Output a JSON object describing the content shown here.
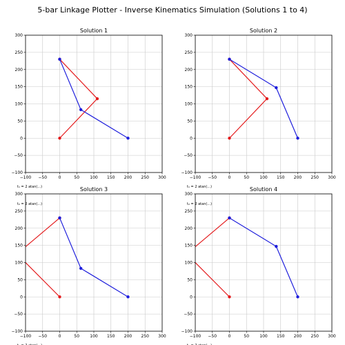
{
  "figure": {
    "title": "5-bar Linkage Plotter - Inverse Kinematics Simulation (Solutions 1 to 4)"
  },
  "colors": {
    "left_arm": "#e41a1c",
    "right_arm": "#1f1fdc",
    "grid": "#c8c8c8",
    "background": "#ffffff"
  },
  "chart_data": [
    {
      "type": "line",
      "title": "Solution 1",
      "xlim": [
        -100,
        300
      ],
      "ylim": [
        -100,
        300
      ],
      "xticks": [
        -100,
        -50,
        0,
        50,
        100,
        150,
        200,
        250,
        300
      ],
      "yticks": [
        -100,
        -50,
        0,
        50,
        100,
        150,
        200,
        250,
        300
      ],
      "grid": true,
      "formula_label": "t₁ = 2 atan(...)",
      "series": [
        {
          "x": [
            0,
            110,
            0
          ],
          "y": [
            0,
            115,
            230
          ],
          "color": "#e41a1c"
        },
        {
          "x": [
            200,
            62,
            0
          ],
          "y": [
            0,
            83,
            230
          ],
          "color": "#1f1fdc"
        }
      ]
    },
    {
      "type": "line",
      "title": "Solution 2",
      "xlim": [
        -100,
        300
      ],
      "ylim": [
        -100,
        300
      ],
      "xticks": [
        -100,
        -50,
        0,
        50,
        100,
        150,
        200,
        250,
        300
      ],
      "yticks": [
        -100,
        -50,
        0,
        50,
        100,
        150,
        200,
        250,
        300
      ],
      "grid": true,
      "formula_label": "t₁ = 2 atan(...)",
      "series": [
        {
          "x": [
            0,
            110,
            0
          ],
          "y": [
            0,
            115,
            230
          ],
          "color": "#e41a1c"
        },
        {
          "x": [
            200,
            137,
            0
          ],
          "y": [
            0,
            147,
            230
          ],
          "color": "#1f1fdc"
        }
      ]
    },
    {
      "type": "line",
      "title": "Solution 3",
      "xlim": [
        -100,
        300
      ],
      "ylim": [
        -100,
        300
      ],
      "xticks": [
        -100,
        -50,
        0,
        50,
        100,
        150,
        200,
        250,
        300
      ],
      "yticks": [
        -100,
        -50,
        0,
        50,
        100,
        150,
        200,
        250,
        300
      ],
      "grid": true,
      "formula_label": "t₁ = 2 atan(...)",
      "formula_label_top": "t₂ = 2 atan(...)",
      "series": [
        {
          "x": [
            0,
            -125,
            0
          ],
          "y": [
            0,
            125,
            230
          ],
          "color": "#e41a1c"
        },
        {
          "x": [
            200,
            62,
            0
          ],
          "y": [
            0,
            83,
            230
          ],
          "color": "#1f1fdc"
        }
      ]
    },
    {
      "type": "line",
      "title": "Solution 4",
      "xlim": [
        -100,
        300
      ],
      "ylim": [
        -100,
        300
      ],
      "xticks": [
        -100,
        -50,
        0,
        50,
        100,
        150,
        200,
        250,
        300
      ],
      "yticks": [
        -100,
        -50,
        0,
        50,
        100,
        150,
        200,
        250,
        300
      ],
      "grid": true,
      "formula_label": "t₁ = 2 atan(...)",
      "formula_label_top": "t₂ = 2 atan(...)",
      "series": [
        {
          "x": [
            0,
            -125,
            0
          ],
          "y": [
            0,
            125,
            230
          ],
          "color": "#e41a1c"
        },
        {
          "x": [
            200,
            137,
            0
          ],
          "y": [
            0,
            147,
            230
          ],
          "color": "#1f1fdc"
        }
      ]
    }
  ]
}
